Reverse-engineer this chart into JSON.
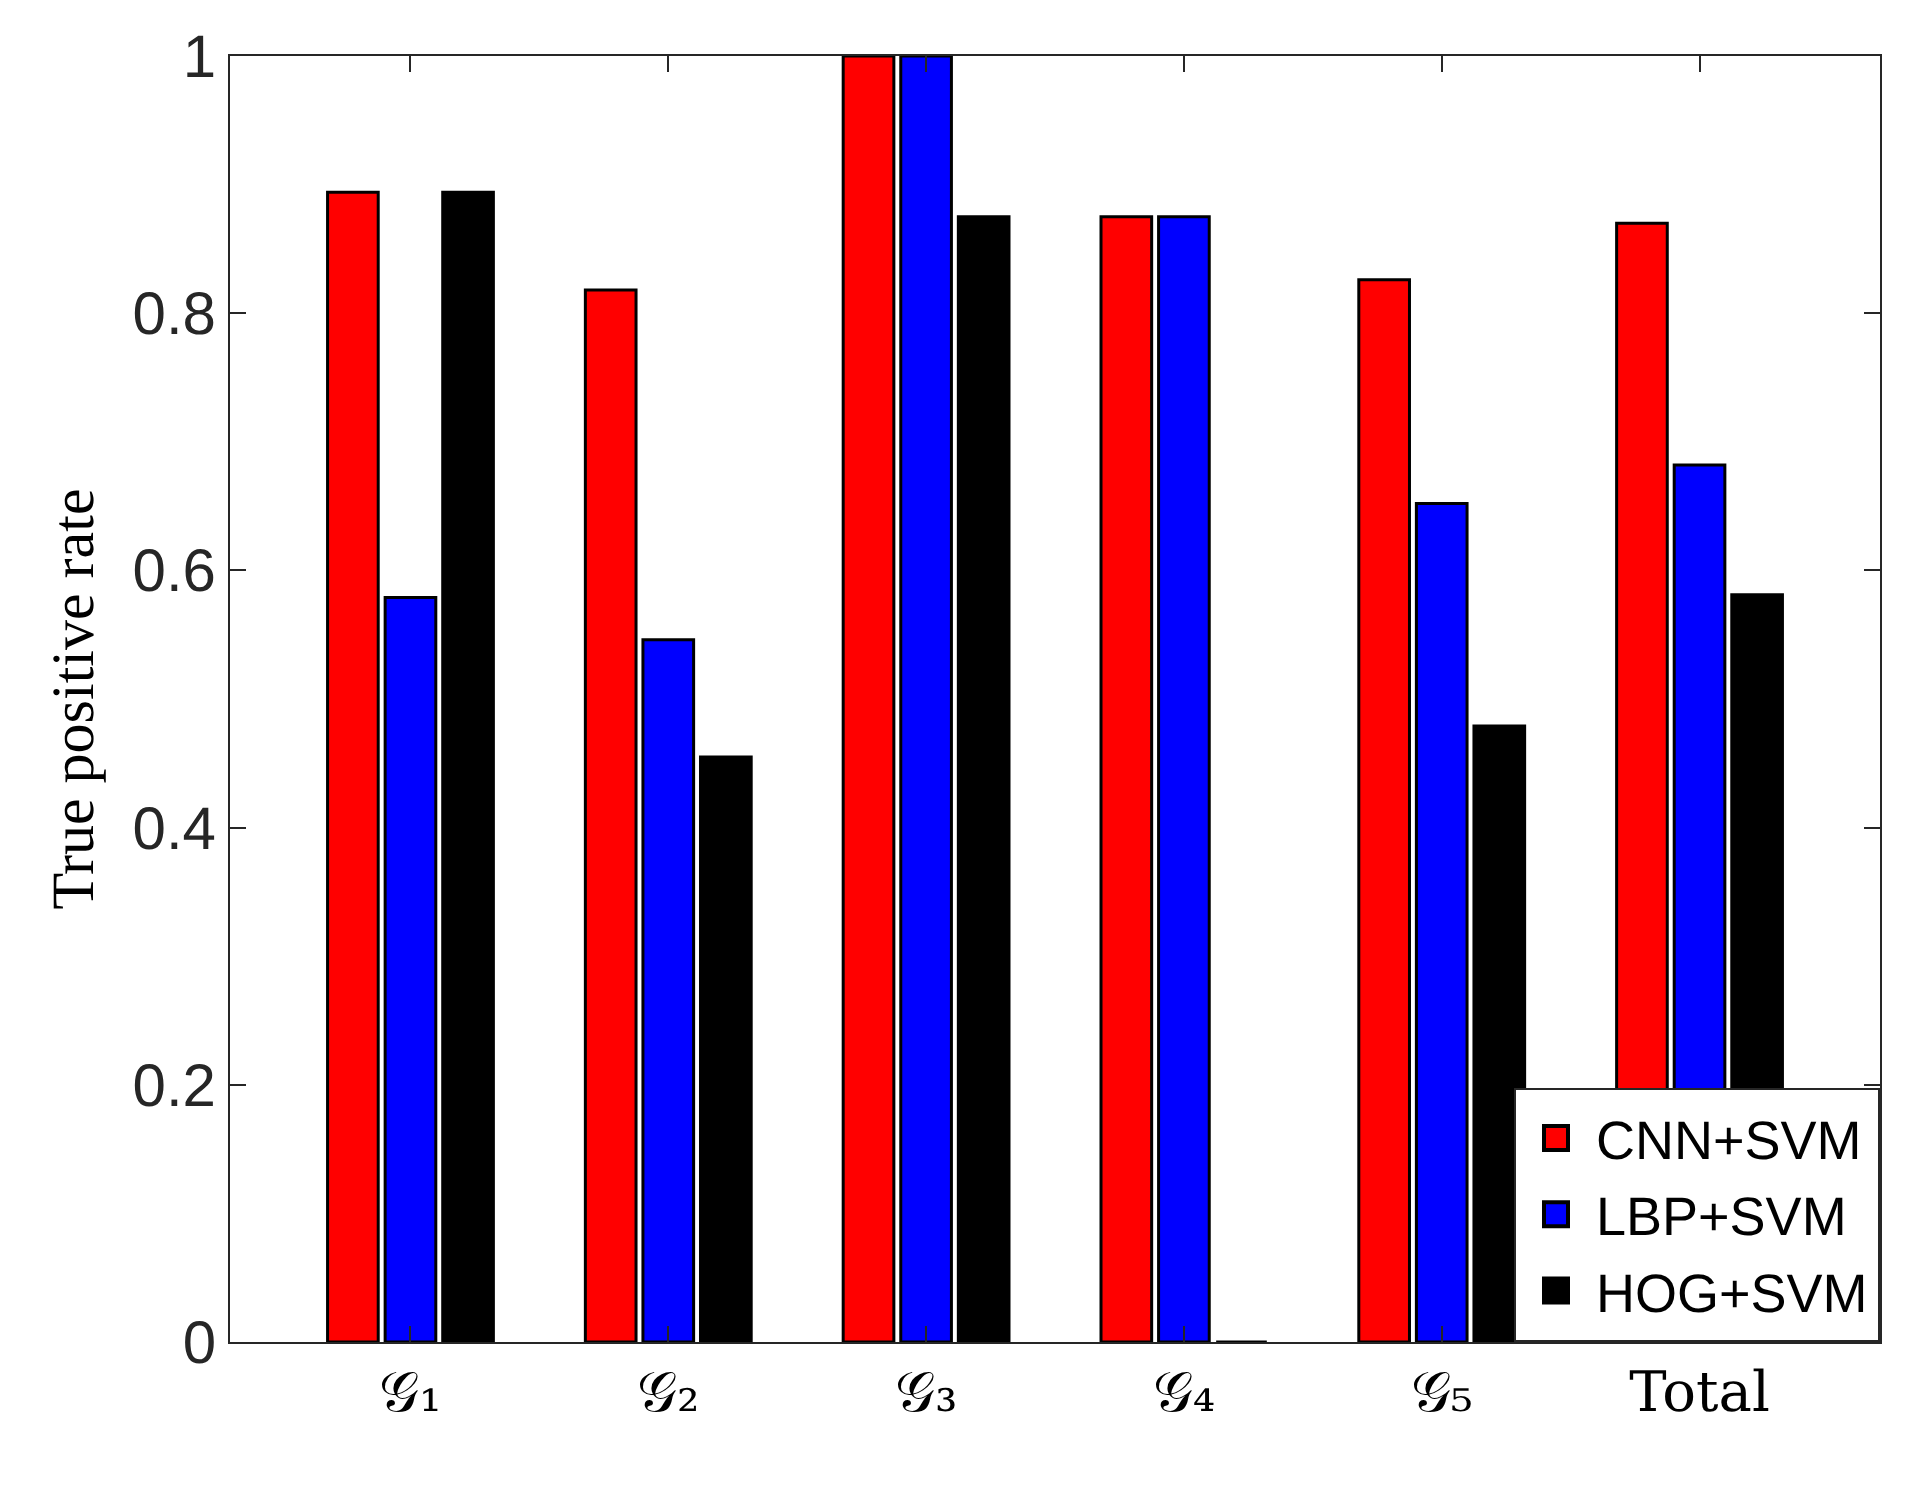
{
  "chart_data": {
    "type": "bar",
    "ylabel": "True positive rate",
    "categories": [
      "𝒢₁",
      "𝒢₂",
      "𝒢₃",
      "𝒢₄",
      "𝒢₅",
      "Total"
    ],
    "series": [
      {
        "name": "CNN+SVM",
        "color": "#ff0000",
        "values": [
          0.894,
          0.818,
          1.0,
          0.875,
          0.826,
          0.87
        ]
      },
      {
        "name": "LBP+SVM",
        "color": "#0000ff",
        "values": [
          0.579,
          0.546,
          1.0,
          0.875,
          0.652,
          0.682
        ]
      },
      {
        "name": "HOG+SVM",
        "color": "#000000",
        "values": [
          0.894,
          0.455,
          0.875,
          0.0,
          0.479,
          0.581
        ]
      }
    ],
    "ylim": [
      0,
      1
    ],
    "yticks": [
      0,
      0.2,
      0.4,
      0.6,
      0.8,
      1
    ],
    "legend": "bottom right"
  }
}
